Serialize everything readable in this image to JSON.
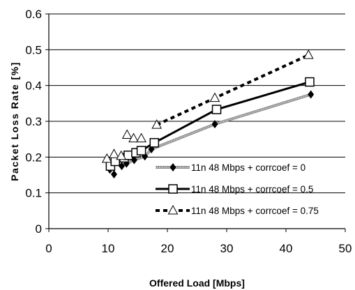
{
  "chart_data": {
    "type": "line",
    "xlabel": "Offered Load [Mbps]",
    "ylabel": "Packet Loss Rate [%]",
    "xlim": [
      0,
      50
    ],
    "ylim": [
      0,
      0.6
    ],
    "x_ticks": [
      "0",
      "10",
      "20",
      "30",
      "40",
      "50"
    ],
    "y_ticks": [
      "0",
      "0.1",
      "0.2",
      "0.3",
      "0.4",
      "0.5",
      "0.6"
    ],
    "grid": "horizontal",
    "legend_position": "bottom-right",
    "series": [
      {
        "name": "11n 48 Mbps + corrcoef = 0",
        "marker": "diamond",
        "line_style": "gray-hatched",
        "color": "#999999",
        "points": [
          [
            10.3,
            0.165
          ],
          [
            11.0,
            0.152
          ],
          [
            12.3,
            0.175
          ],
          [
            13.1,
            0.182
          ],
          [
            14.4,
            0.192
          ],
          [
            16.2,
            0.202
          ],
          [
            17.3,
            0.222
          ],
          [
            28.0,
            0.292
          ],
          [
            44.2,
            0.375
          ]
        ]
      },
      {
        "name": "11n 48 Mbps + corrcoef = 0.5",
        "marker": "square",
        "line_style": "solid",
        "color": "#000000",
        "points": [
          [
            10.4,
            0.175
          ],
          [
            11.2,
            0.188
          ],
          [
            12.7,
            0.198
          ],
          [
            13.4,
            0.205
          ],
          [
            14.7,
            0.212
          ],
          [
            15.6,
            0.218
          ],
          [
            17.8,
            0.24
          ],
          [
            28.3,
            0.333
          ],
          [
            44.0,
            0.41
          ]
        ]
      },
      {
        "name": "11n 48 Mbps + corrcoef = 0.75",
        "marker": "triangle",
        "line_style": "dashed",
        "color": "#000000",
        "points": [
          [
            9.8,
            0.195
          ],
          [
            11.0,
            0.208
          ],
          [
            12.2,
            0.203
          ],
          [
            13.2,
            0.262
          ],
          [
            14.3,
            0.252
          ],
          [
            15.6,
            0.252
          ],
          [
            18.2,
            0.29
          ],
          [
            28.0,
            0.365
          ],
          [
            43.8,
            0.485
          ]
        ]
      }
    ]
  }
}
